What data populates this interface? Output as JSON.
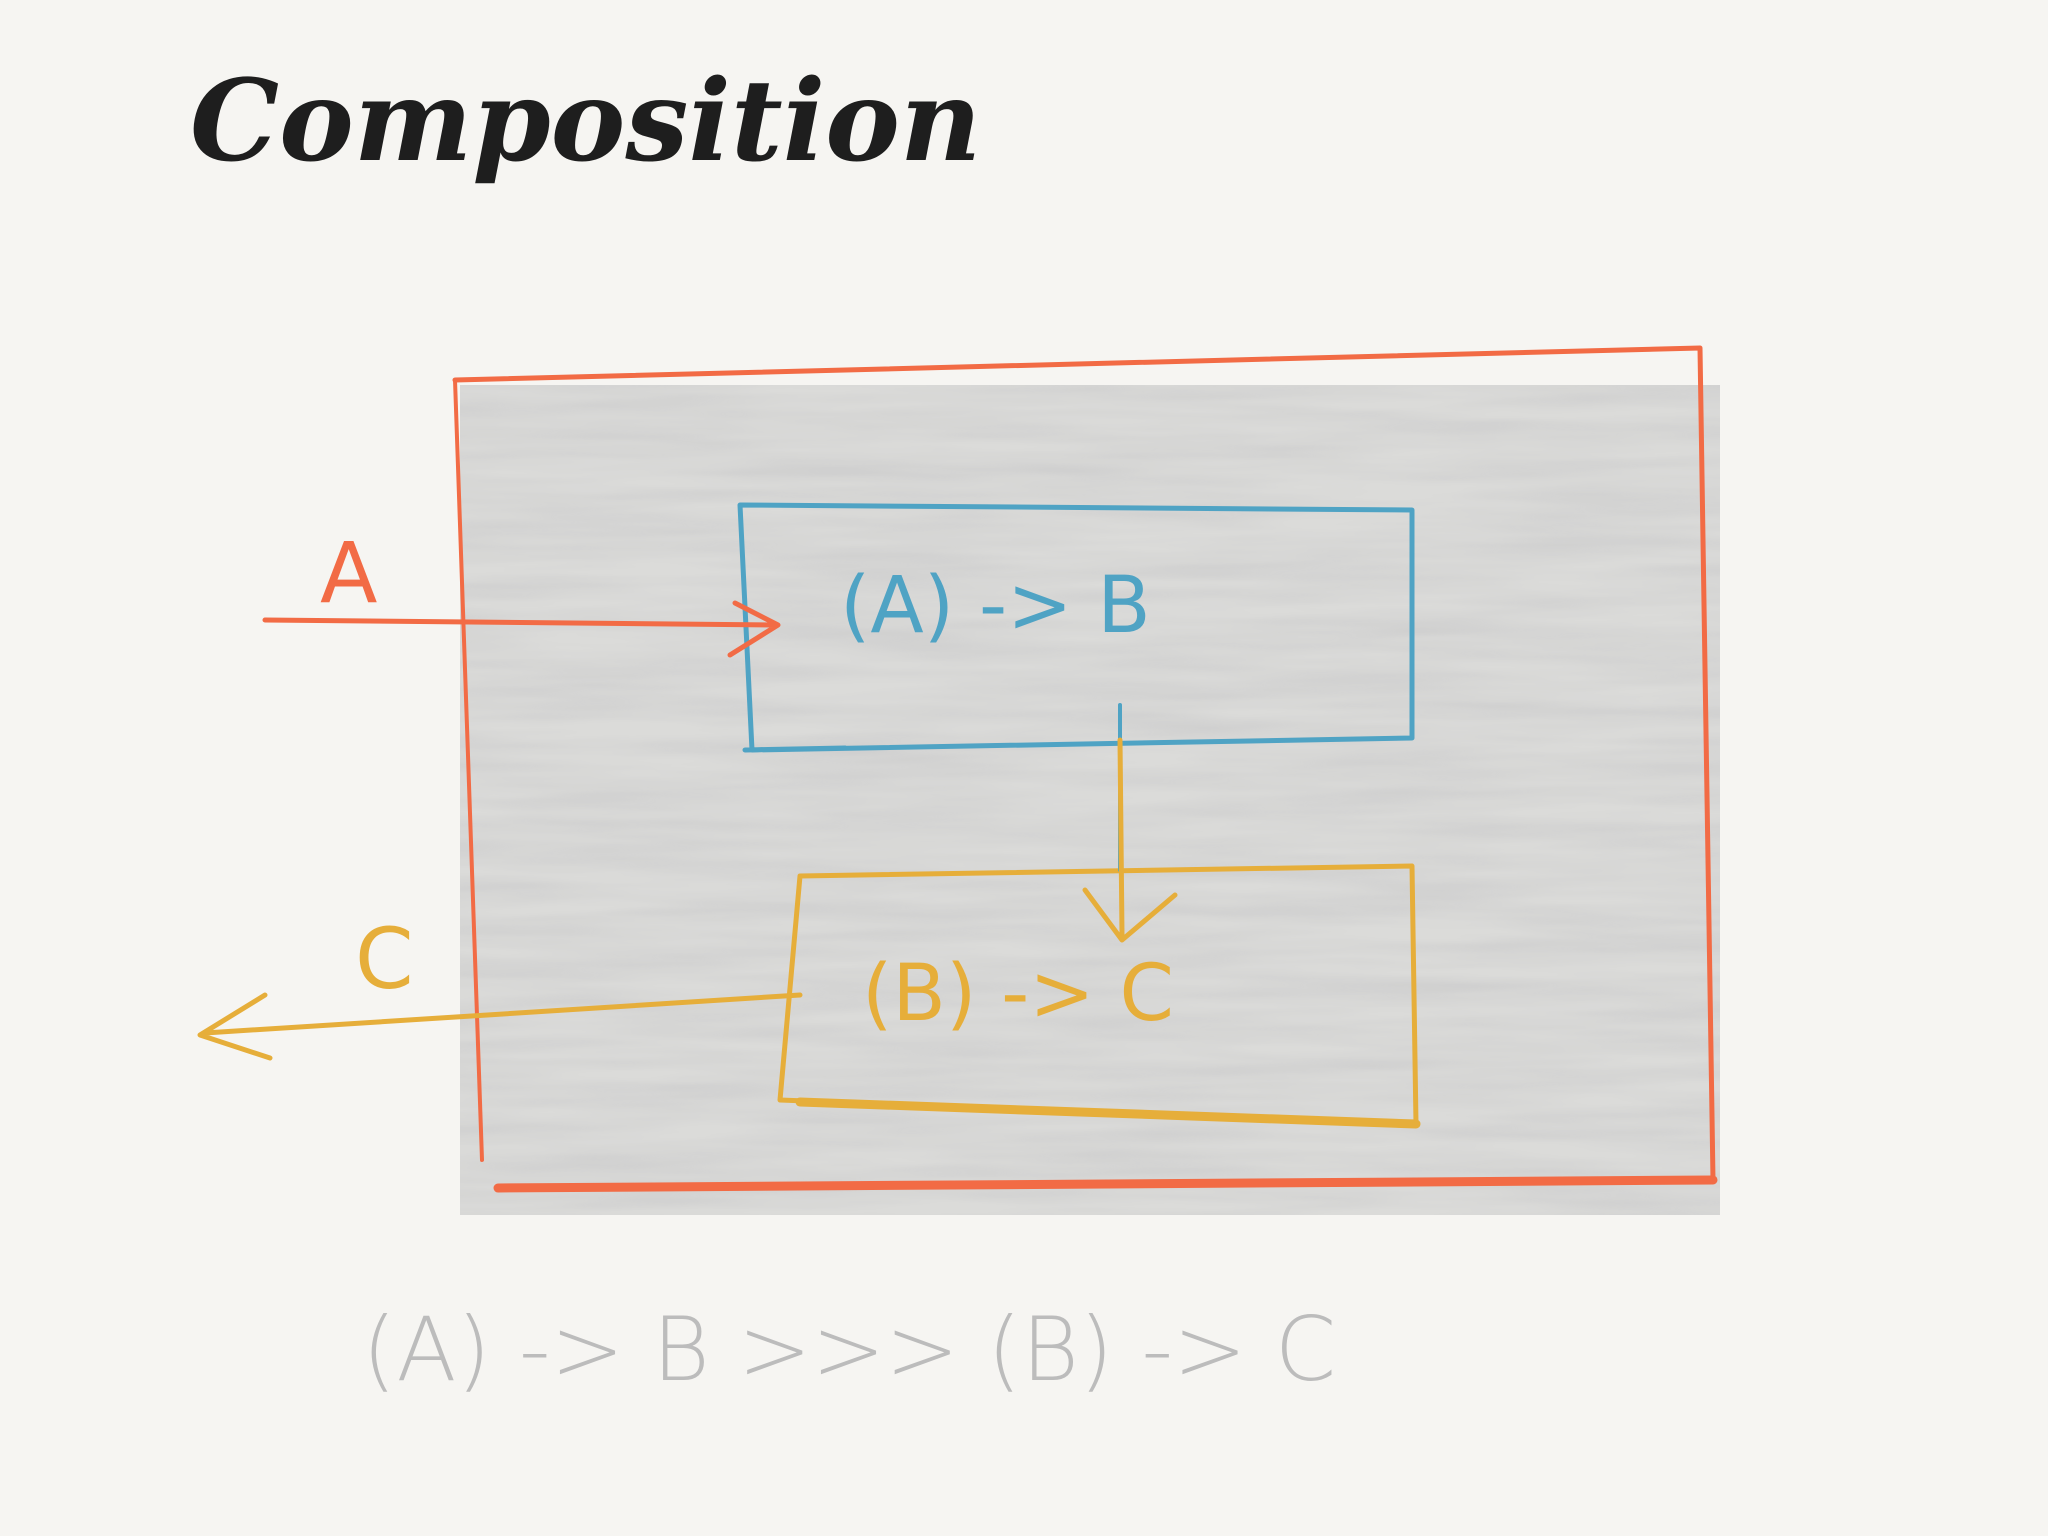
{
  "title": "Composition",
  "colors": {
    "background": "#f6f5f2",
    "outer_box": "#f26b45",
    "box_ab": "#4fa3c4",
    "box_bc": "#e6ae3a",
    "shading": "#bdbdbd",
    "title": "#1e1e1e",
    "formula": "#bcbcbc"
  },
  "input": {
    "label": "A"
  },
  "output": {
    "label": "C"
  },
  "function_ab": {
    "label": "(A) -> B"
  },
  "function_bc": {
    "label": "(B) -> C"
  },
  "formula": "(A) -> B >>> (B) -> C"
}
